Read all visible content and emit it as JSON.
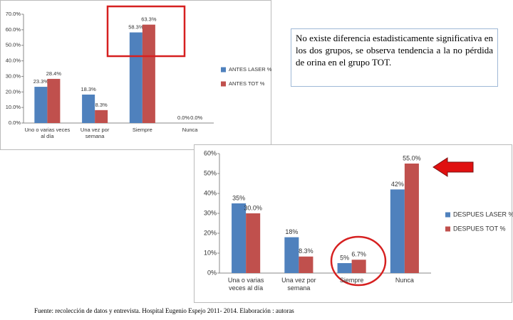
{
  "chart_data": [
    {
      "type": "bar",
      "categories": [
        "Uno o varias veces al día",
        "Una vez por semana",
        "Siempre",
        "Nunca"
      ],
      "series": [
        {
          "name": "ANTES LASER %",
          "color": "#4f81bd",
          "values": [
            23.3,
            18.3,
            58.3,
            0.0
          ],
          "value_labels": [
            "23.3%",
            "18.3%",
            "58.3%",
            "0.0%"
          ]
        },
        {
          "name": "ANTES TOT %",
          "color": "#c0504d",
          "values": [
            28.4,
            8.3,
            63.3,
            0.0
          ],
          "value_labels": [
            "28.4%",
            "8.3%",
            "63.3%",
            "0.0%"
          ]
        }
      ],
      "ylim": [
        0,
        70
      ],
      "yticks": [
        {
          "value": 0,
          "label": "0.0%"
        },
        {
          "value": 10,
          "label": "10.0%"
        },
        {
          "value": 20,
          "label": "20.0%"
        },
        {
          "value": 30,
          "label": "30.0%"
        },
        {
          "value": 40,
          "label": "40.0%"
        },
        {
          "value": 50,
          "label": "50.0%"
        },
        {
          "value": 60,
          "label": "60.0%"
        },
        {
          "value": 70,
          "label": "70.0%"
        }
      ],
      "legend": "right"
    },
    {
      "type": "bar",
      "categories": [
        "Una o varias veces al día",
        "Una vez por semana",
        "Siempre",
        "Nunca"
      ],
      "series": [
        {
          "name": "DESPUES LASER %",
          "color": "#4f81bd",
          "values": [
            35,
            18,
            5,
            42
          ],
          "value_labels": [
            "35%",
            "18%",
            "5%",
            "42%"
          ]
        },
        {
          "name": "DESPUES TOT %",
          "color": "#c0504d",
          "values": [
            30,
            8.3,
            6.7,
            55
          ],
          "value_labels": [
            "30.0%",
            "8.3%",
            "6.7%",
            "55.0%"
          ]
        }
      ],
      "ylim": [
        0,
        60
      ],
      "yticks": [
        {
          "value": 0,
          "label": "0%"
        },
        {
          "value": 10,
          "label": "10%"
        },
        {
          "value": 20,
          "label": "20%"
        },
        {
          "value": 30,
          "label": "30%"
        },
        {
          "value": 40,
          "label": "40%"
        },
        {
          "value": 50,
          "label": "50%"
        },
        {
          "value": 60,
          "label": "60%"
        }
      ],
      "legend": "right"
    }
  ],
  "note": "No existe diferencia estadisticamente significativa en los dos grupos, se observa tendencia a la no pérdida de orina en el grupo TOT.",
  "source": "Fuente: recolección de datos y entrevista. Hospital Eugenio Espejo 2011- 2014. Elaboración : autoras"
}
